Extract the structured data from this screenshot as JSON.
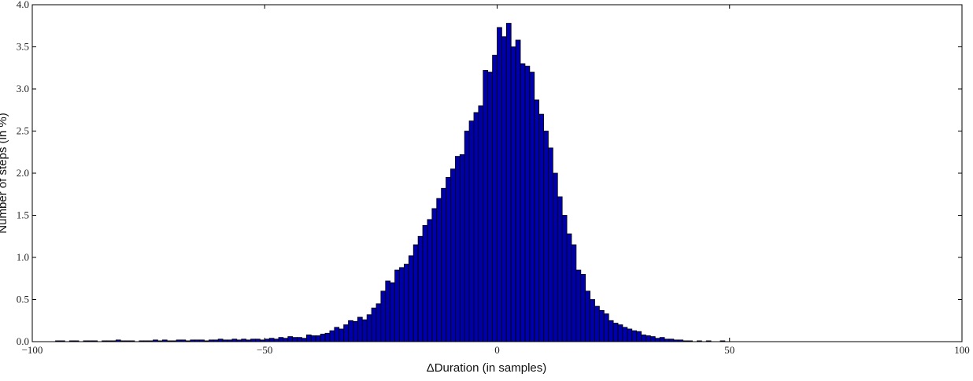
{
  "chart_data": {
    "type": "histogram",
    "xlabel": "ΔDuration (in samples)",
    "ylabel": "Number of steps (in %)",
    "color": "#0000aa",
    "bins": [
      -95,
      -94,
      -93,
      -92,
      -91,
      -90,
      -89,
      -88,
      -87,
      -86,
      -85,
      -84,
      -83,
      -82,
      -81,
      -80,
      -79,
      -78,
      -77,
      -76,
      -75,
      -74,
      -73,
      -72,
      -71,
      -70,
      -69,
      -68,
      -67,
      -66,
      -65,
      -64,
      -63,
      -62,
      -61,
      -60,
      -59,
      -58,
      -57,
      -56,
      -55,
      -54,
      -53,
      -52,
      -51,
      -50,
      -49,
      -48,
      -47,
      -46,
      -45,
      -44,
      -43,
      -42,
      -41,
      -40,
      -39,
      -38,
      -37,
      -36,
      -35,
      -34,
      -33,
      -32,
      -31,
      -30,
      -29,
      -28,
      -27,
      -26,
      -25,
      -24,
      -23,
      -22,
      -21,
      -20,
      -19,
      -18,
      -17,
      -16,
      -15,
      -14,
      -13,
      -12,
      -11,
      -10,
      -9,
      -8,
      -7,
      -6,
      -5,
      -4,
      -3,
      -2,
      -1,
      0,
      1,
      2,
      3,
      4,
      5,
      6,
      7,
      8,
      9,
      10,
      11,
      12,
      13,
      14,
      15,
      16,
      17,
      18,
      19,
      20,
      21,
      22,
      23,
      24,
      25,
      26,
      27,
      28,
      29,
      30,
      31,
      32,
      33,
      34,
      35,
      36,
      37,
      38,
      39,
      40,
      41,
      42,
      43,
      44,
      45,
      46,
      47,
      48,
      49,
      50
    ],
    "values": [
      0.01,
      0.01,
      0.0,
      0.01,
      0.01,
      0.0,
      0.01,
      0.01,
      0.01,
      0.0,
      0.01,
      0.01,
      0.01,
      0.02,
      0.01,
      0.01,
      0.01,
      0.0,
      0.01,
      0.01,
      0.01,
      0.02,
      0.01,
      0.02,
      0.01,
      0.01,
      0.02,
      0.02,
      0.01,
      0.02,
      0.02,
      0.02,
      0.01,
      0.02,
      0.02,
      0.03,
      0.02,
      0.02,
      0.03,
      0.02,
      0.03,
      0.02,
      0.03,
      0.03,
      0.02,
      0.03,
      0.04,
      0.03,
      0.05,
      0.04,
      0.06,
      0.05,
      0.05,
      0.04,
      0.08,
      0.07,
      0.07,
      0.09,
      0.1,
      0.13,
      0.17,
      0.15,
      0.2,
      0.25,
      0.24,
      0.29,
      0.26,
      0.32,
      0.4,
      0.45,
      0.6,
      0.72,
      0.7,
      0.85,
      0.88,
      0.92,
      1.02,
      1.15,
      1.25,
      1.38,
      1.45,
      1.58,
      1.7,
      1.82,
      1.95,
      2.05,
      2.2,
      2.22,
      2.5,
      2.62,
      2.72,
      2.8,
      3.22,
      3.2,
      3.4,
      3.73,
      3.62,
      3.78,
      3.5,
      3.58,
      3.3,
      3.27,
      3.2,
      2.87,
      2.7,
      2.5,
      2.3,
      2.0,
      1.72,
      1.5,
      1.28,
      1.15,
      0.85,
      0.8,
      0.6,
      0.5,
      0.42,
      0.37,
      0.33,
      0.25,
      0.22,
      0.2,
      0.17,
      0.15,
      0.13,
      0.12,
      0.08,
      0.07,
      0.06,
      0.04,
      0.05,
      0.03,
      0.03,
      0.02,
      0.02,
      0.01,
      0.01,
      0.0,
      0.01,
      0.0,
      0.01,
      0.0,
      0.0,
      0.01,
      0.0
    ],
    "xlim": [
      -100,
      100
    ],
    "ylim": [
      0,
      4
    ],
    "xticks": [
      {
        "value": -100,
        "label": "−100"
      },
      {
        "value": -50,
        "label": "−50"
      },
      0,
      50,
      100
    ],
    "yticks": [
      {
        "value": 0,
        "label": "0.0"
      },
      {
        "value": 0.5,
        "label": "0.5"
      },
      {
        "value": 1,
        "label": "1.0"
      },
      {
        "value": 1.5,
        "label": "1.5"
      },
      {
        "value": 2,
        "label": "2.0"
      },
      {
        "value": 2.5,
        "label": "2.5"
      },
      {
        "value": 3,
        "label": "3.0"
      },
      {
        "value": 3.5,
        "label": "3.5"
      },
      {
        "value": 4,
        "label": "4.0"
      }
    ]
  }
}
